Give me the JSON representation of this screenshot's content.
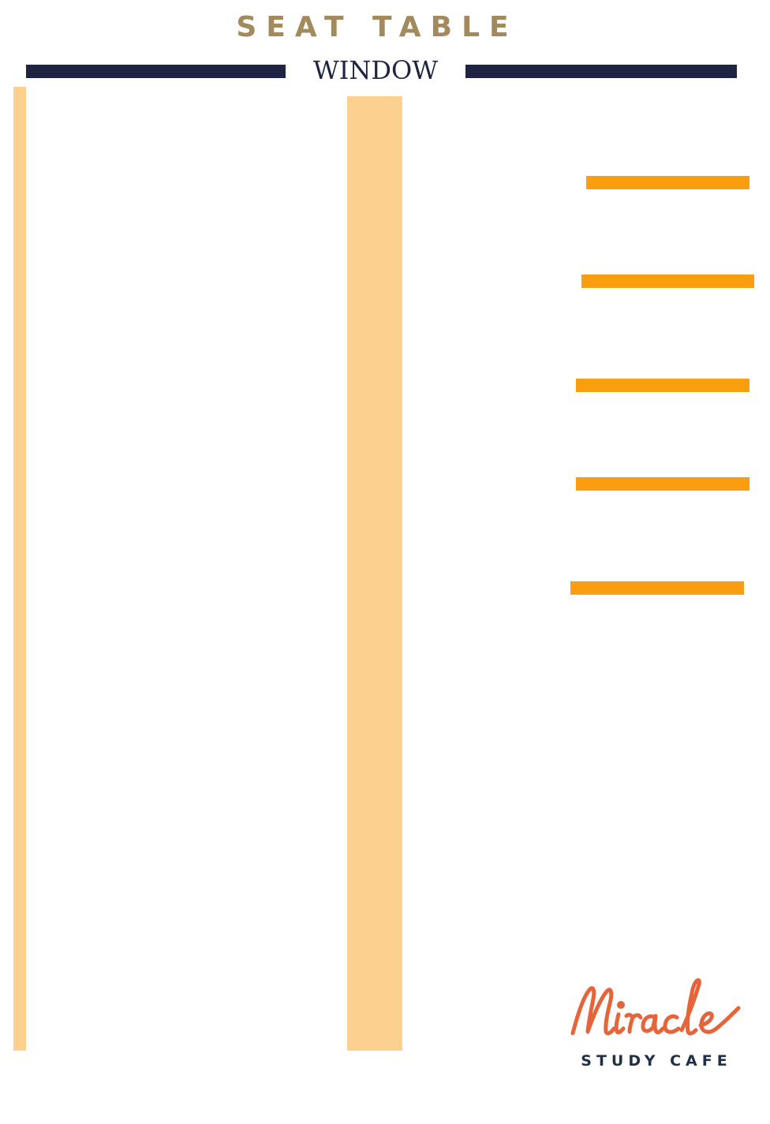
{
  "header": {
    "title": "SEAT TABLE",
    "window_label": "WINDOW"
  },
  "seats": [
    {
      "id": "seat-1"
    },
    {
      "id": "seat-2"
    },
    {
      "id": "seat-3"
    },
    {
      "id": "seat-4"
    },
    {
      "id": "seat-5"
    }
  ],
  "logo": {
    "script_text": "Miracle",
    "subtitle": "STUDY CAFE"
  },
  "colors": {
    "title": "#a28a5c",
    "window_bar": "#1f2540",
    "table": "#fcd08f",
    "seat": "#fa9e10",
    "logo_script": "#e5643a",
    "logo_subtitle": "#1f3146"
  }
}
